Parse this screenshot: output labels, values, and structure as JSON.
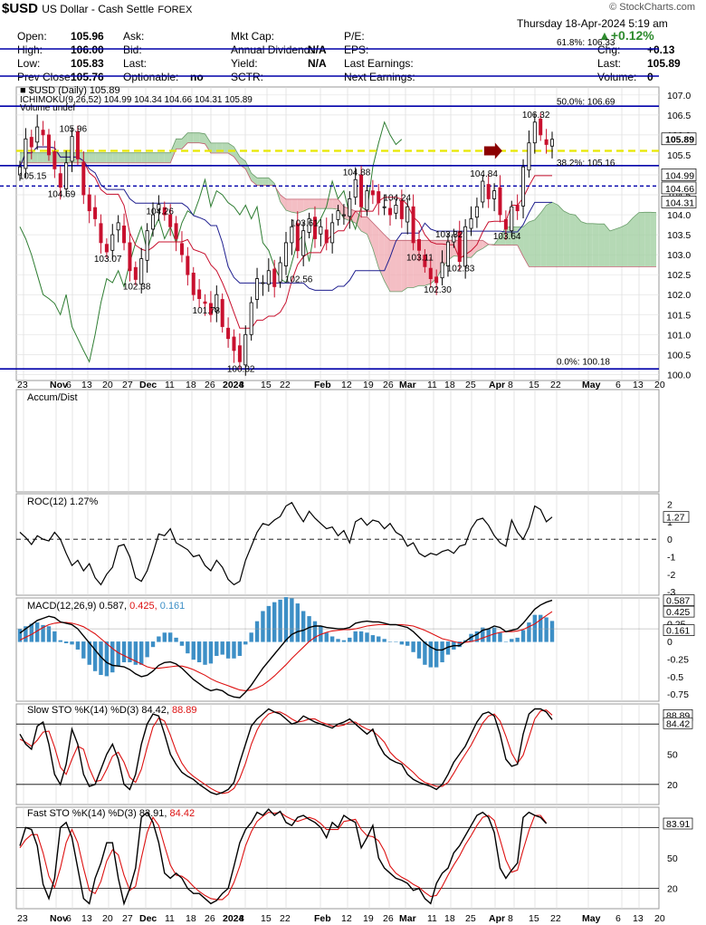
{
  "header": {
    "symbol": "$USD",
    "name": "US Dollar - Cash Settle",
    "exchange": "FOREX",
    "watermark": "© StockCharts.com",
    "date": "Thursday  18-Apr-2024  5:19 am",
    "change_pct": "▲+0.12%",
    "row1": [
      "Open:",
      "105.96",
      "Ask:",
      "",
      "Mkt Cap:",
      "",
      "P/E:",
      ""
    ],
    "row2": [
      "High:",
      "106.00",
      "Bid:",
      "",
      "Annual Dividend:",
      "N/A",
      "EPS:",
      "",
      "Chg:",
      "+0.13"
    ],
    "row3": [
      "Low:",
      "105.83",
      "Last:",
      "",
      "Yield:",
      "N/A",
      "Last Earnings:",
      "",
      "Last:",
      "105.89"
    ],
    "row4": [
      "Prev Close:",
      "105.76",
      "Optionable:",
      "no",
      "SCTR:",
      "",
      "Next Earnings:",
      "",
      "Volume:",
      "0"
    ]
  },
  "legend": {
    "price": "$USD (Daily) 105.89",
    "ichimoku_label": "ICHIMOKU(9,26,52)",
    "ichimoku_vals": [
      "104.99",
      "104.34",
      "104.66",
      "104.31",
      "105.89"
    ],
    "volume": "Volume undef"
  },
  "colors": {
    "bull": "#000000",
    "bear": "#c8102e",
    "hline": "#0000aa",
    "yellow": "#e8e800",
    "cloud_green": "#9ccc9c",
    "cloud_red": "#f0a8b0",
    "tenkan": "#c8102e",
    "kijun": "#1f1f8f",
    "chikou": "#2e7d32",
    "macd_hist": "#3d8fc6",
    "signal": "#d11",
    "grid": "#888888"
  },
  "chart_data": [
    {
      "type": "candlestick",
      "title": "$USD (Daily) 105.89",
      "ylim": [
        99.85,
        107.2
      ],
      "y_ticks": [
        "107.0",
        "106.5",
        "106.0",
        "105.5",
        "105.0",
        "104.5",
        "104.0",
        "103.5",
        "103.0",
        "102.5",
        "102.0",
        "101.5",
        "101.0",
        "100.5",
        "100.0"
      ],
      "x_labels": [
        "23",
        "Nov",
        "6",
        "13",
        "20",
        "27",
        "Dec",
        "11",
        "18",
        "26",
        "2024",
        "8",
        "15",
        "22",
        "Feb",
        "12",
        "19",
        "26",
        "Mar",
        "11",
        "18",
        "25",
        "Apr",
        "8",
        "15",
        "22",
        "May",
        "6",
        "13",
        "20"
      ],
      "close": [
        105.2,
        105.9,
        105.7,
        106.2,
        106.0,
        105.5,
        105.15,
        104.69,
        105.3,
        105.96,
        105.4,
        104.5,
        104.1,
        103.9,
        103.3,
        103.07,
        103.5,
        103.8,
        103.3,
        102.6,
        102.38,
        102.9,
        103.6,
        104.0,
        104.26,
        104.0,
        103.7,
        103.4,
        103.0,
        102.5,
        102.0,
        101.9,
        101.78,
        101.5,
        102.0,
        101.2,
        100.9,
        100.6,
        100.32,
        101.0,
        101.8,
        102.4,
        102.3,
        102.6,
        102.2,
        102.8,
        103.3,
        103.7,
        103.1,
        103.6,
        103.9,
        103.4,
        103.7,
        103.3,
        103.8,
        104.1,
        104.0,
        104.4,
        104.88,
        104.2,
        104.6,
        104.5,
        104.3,
        104.2,
        104.0,
        104.24,
        103.9,
        104.2,
        103.3,
        103.11,
        102.7,
        102.4,
        102.3,
        102.8,
        103.32,
        103.5,
        102.83,
        103.7,
        103.9,
        104.2,
        104.84,
        104.4,
        104.6,
        104.0,
        103.64,
        104.2,
        104.1,
        105.2,
        105.8,
        106.32,
        106.0,
        105.76,
        105.89
      ],
      "annotations": [
        {
          "label": "105.96",
          "i": 9,
          "v": 105.96,
          "pos": "above"
        },
        {
          "label": "105.15",
          "i": 2,
          "v": 105.15,
          "pos": "below"
        },
        {
          "label": "104.69",
          "i": 7,
          "v": 104.69,
          "pos": "below"
        },
        {
          "label": "104.26",
          "i": 24,
          "v": 104.26,
          "pos": "below"
        },
        {
          "label": "103.07",
          "i": 15,
          "v": 103.07,
          "pos": "below"
        },
        {
          "label": "102.38",
          "i": 20,
          "v": 102.38,
          "pos": "below"
        },
        {
          "label": "101.78",
          "i": 32,
          "v": 101.78,
          "pos": "below"
        },
        {
          "label": "100.32",
          "i": 38,
          "v": 100.32,
          "pos": "below"
        },
        {
          "label": "103.61",
          "i": 49,
          "v": 103.61,
          "pos": "above"
        },
        {
          "label": "102.56",
          "i": 48,
          "v": 102.56,
          "pos": "below"
        },
        {
          "label": "104.88",
          "i": 58,
          "v": 104.88,
          "pos": "above"
        },
        {
          "label": "104.24",
          "i": 65,
          "v": 104.24,
          "pos": "above"
        },
        {
          "label": "103.11",
          "i": 69,
          "v": 103.11,
          "pos": "below"
        },
        {
          "label": "103.32",
          "i": 74,
          "v": 103.32,
          "pos": "above"
        },
        {
          "label": "102.30",
          "i": 72,
          "v": 102.3,
          "pos": "below"
        },
        {
          "label": "102.83",
          "i": 76,
          "v": 102.83,
          "pos": "below"
        },
        {
          "label": "104.84",
          "i": 80,
          "v": 104.84,
          "pos": "above"
        },
        {
          "label": "103.64",
          "i": 84,
          "v": 103.64,
          "pos": "below"
        },
        {
          "label": "106.32",
          "i": 89,
          "v": 106.32,
          "pos": "above"
        }
      ],
      "fib_levels": [
        {
          "label": "61.8%: 106.33",
          "v": 106.33
        },
        {
          "label": "50.0%: 106.69",
          "v": 106.69
        },
        {
          "label": "38.2%: 105.16",
          "v": 105.16
        },
        {
          "label": "0.0%: 100.18",
          "v": 100.18
        }
      ],
      "blue_lines": [
        106.72,
        105.23,
        100.14
      ],
      "dashed_line": 104.72,
      "yellow_line": 105.6,
      "right_tags": [
        "105.89",
        "104.99",
        "104.66",
        "104.31"
      ]
    },
    {
      "type": "line",
      "title": "Accum/Dist",
      "values": []
    },
    {
      "type": "line",
      "title": "ROC(12) 1.27%",
      "ylim": [
        -3.2,
        2.6
      ],
      "y_ticks": [
        "2",
        "1",
        "0",
        "-1",
        "-2",
        "-3"
      ],
      "zero_line": 0,
      "right_tag": "1.27",
      "values": [
        0.4,
        0.1,
        -0.3,
        0.2,
        0.0,
        -0.1,
        0.4,
        0.0,
        -0.8,
        -1.5,
        -1.2,
        -1.8,
        -1.4,
        -2.2,
        -2.6,
        -2.0,
        -1.6,
        -0.4,
        -0.3,
        -1.0,
        -2.2,
        -2.4,
        -1.8,
        -0.8,
        0.3,
        0.2,
        0.6,
        -0.2,
        -0.4,
        -0.6,
        -1.0,
        -0.9,
        -1.5,
        -1.8,
        -1.2,
        -1.6,
        -2.3,
        -2.6,
        -2.4,
        -1.2,
        -0.4,
        0.4,
        0.9,
        0.8,
        1.1,
        1.3,
        1.9,
        2.1,
        1.5,
        1.0,
        1.6,
        1.2,
        0.9,
        0.6,
        0.7,
        0.2,
        0.5,
        -0.2,
        1.0,
        1.2,
        0.8,
        1.1,
        1.0,
        0.6,
        0.9,
        0.4,
        0.2,
        -0.4,
        -0.2,
        -0.8,
        -1.0,
        -0.8,
        -0.9,
        -0.7,
        -0.6,
        -0.8,
        -0.4,
        -0.3,
        0.6,
        1.1,
        1.2,
        0.8,
        0.2,
        -0.2,
        -0.4,
        1.1,
        0.4,
        0.0,
        0.7,
        1.9,
        1.7,
        1.0,
        1.27
      ]
    },
    {
      "type": "line",
      "title": "MACD(12,26,9)",
      "macd_val": "0.587",
      "signal_val": "0.425",
      "hist_val": "0.161",
      "ylim": [
        -0.85,
        0.62
      ],
      "y_ticks": [
        "0.587",
        "0.425",
        "0.25",
        "0.161",
        "0",
        "-0.25",
        "-0.5",
        "-0.75"
      ],
      "right_tags": [
        "0.587",
        "0.425",
        "0.161"
      ],
      "macd": [
        0.12,
        0.18,
        0.24,
        0.3,
        0.33,
        0.36,
        0.34,
        0.28,
        0.26,
        0.24,
        0.18,
        0.08,
        -0.02,
        -0.12,
        -0.22,
        -0.3,
        -0.34,
        -0.35,
        -0.36,
        -0.4,
        -0.46,
        -0.5,
        -0.48,
        -0.42,
        -0.34,
        -0.3,
        -0.29,
        -0.32,
        -0.38,
        -0.46,
        -0.54,
        -0.6,
        -0.66,
        -0.7,
        -0.68,
        -0.7,
        -0.76,
        -0.79,
        -0.8,
        -0.72,
        -0.62,
        -0.5,
        -0.38,
        -0.28,
        -0.18,
        -0.08,
        0.02,
        0.1,
        0.14,
        0.16,
        0.2,
        0.22,
        0.22,
        0.2,
        0.19,
        0.18,
        0.18,
        0.2,
        0.26,
        0.28,
        0.29,
        0.28,
        0.28,
        0.26,
        0.24,
        0.24,
        0.22,
        0.2,
        0.14,
        0.06,
        -0.02,
        -0.08,
        -0.12,
        -0.12,
        -0.08,
        -0.06,
        -0.06,
        0.0,
        0.06,
        0.1,
        0.16,
        0.18,
        0.22,
        0.2,
        0.14,
        0.16,
        0.18,
        0.26,
        0.36,
        0.46,
        0.52,
        0.56,
        0.587
      ],
      "signal": [
        0.02,
        0.06,
        0.1,
        0.15,
        0.2,
        0.24,
        0.26,
        0.27,
        0.27,
        0.26,
        0.24,
        0.21,
        0.16,
        0.11,
        0.04,
        -0.03,
        -0.1,
        -0.16,
        -0.2,
        -0.24,
        -0.28,
        -0.32,
        -0.36,
        -0.38,
        -0.38,
        -0.37,
        -0.36,
        -0.35,
        -0.35,
        -0.37,
        -0.4,
        -0.44,
        -0.48,
        -0.53,
        -0.57,
        -0.6,
        -0.63,
        -0.66,
        -0.69,
        -0.7,
        -0.69,
        -0.66,
        -0.62,
        -0.56,
        -0.49,
        -0.41,
        -0.33,
        -0.24,
        -0.16,
        -0.08,
        0.0,
        0.06,
        0.1,
        0.13,
        0.15,
        0.16,
        0.17,
        0.17,
        0.18,
        0.2,
        0.22,
        0.23,
        0.24,
        0.24,
        0.24,
        0.24,
        0.24,
        0.23,
        0.22,
        0.19,
        0.16,
        0.12,
        0.08,
        0.04,
        0.02,
        0.0,
        -0.02,
        -0.01,
        0.0,
        0.02,
        0.05,
        0.08,
        0.11,
        0.13,
        0.14,
        0.14,
        0.15,
        0.17,
        0.21,
        0.25,
        0.31,
        0.37,
        0.425
      ]
    },
    {
      "type": "line",
      "title": "Slow STO %K(14) %D(3)",
      "k_val": "84.42",
      "d_val": "88.89",
      "ylim": [
        0,
        100
      ],
      "y_ticks": [
        "80",
        "50",
        "20"
      ],
      "right_tags": [
        "88.89",
        "84.42"
      ],
      "k": [
        70,
        60,
        55,
        78,
        82,
        60,
        30,
        20,
        40,
        75,
        60,
        30,
        18,
        20,
        35,
        50,
        60,
        45,
        20,
        15,
        30,
        60,
        80,
        90,
        88,
        70,
        50,
        40,
        32,
        28,
        25,
        20,
        16,
        12,
        10,
        12,
        15,
        22,
        42,
        60,
        78,
        85,
        90,
        95,
        92,
        90,
        85,
        80,
        82,
        88,
        85,
        82,
        80,
        78,
        76,
        80,
        82,
        85,
        80,
        75,
        70,
        75,
        60,
        50,
        45,
        42,
        40,
        30,
        25,
        22,
        20,
        18,
        15,
        20,
        30,
        42,
        50,
        58,
        70,
        82,
        90,
        92,
        88,
        70,
        45,
        38,
        40,
        70,
        90,
        95,
        95,
        92,
        84.42
      ],
      "d": [
        65,
        62,
        58,
        64,
        72,
        73,
        57,
        37,
        30,
        45,
        58,
        55,
        36,
        23,
        24,
        35,
        48,
        52,
        42,
        27,
        22,
        35,
        57,
        77,
        86,
        83,
        69,
        53,
        41,
        33,
        28,
        24,
        20,
        16,
        13,
        11,
        12,
        16,
        26,
        41,
        60,
        74,
        84,
        90,
        92,
        92,
        89,
        85,
        82,
        83,
        85,
        85,
        82,
        80,
        78,
        78,
        79,
        82,
        82,
        78,
        75,
        73,
        68,
        62,
        52,
        46,
        42,
        37,
        32,
        26,
        22,
        20,
        18,
        18,
        22,
        31,
        41,
        50,
        59,
        70,
        81,
        88,
        90,
        83,
        68,
        51,
        41,
        49,
        67,
        85,
        93,
        94,
        88.89
      ]
    },
    {
      "type": "line",
      "title": "Fast STO %K(14) %D(3)",
      "k_val": "83.91",
      "d_val": "84.42",
      "ylim": [
        0,
        100
      ],
      "y_ticks": [
        "80",
        "50",
        "20"
      ],
      "right_tag": "83.91",
      "k": [
        62,
        80,
        78,
        62,
        24,
        10,
        30,
        80,
        85,
        70,
        40,
        10,
        5,
        30,
        45,
        65,
        65,
        30,
        5,
        20,
        40,
        90,
        95,
        85,
        65,
        35,
        30,
        35,
        30,
        20,
        15,
        15,
        10,
        5,
        8,
        15,
        20,
        42,
        65,
        78,
        85,
        95,
        92,
        98,
        92,
        96,
        85,
        82,
        90,
        92,
        88,
        85,
        80,
        70,
        85,
        80,
        92,
        88,
        85,
        60,
        70,
        82,
        50,
        40,
        35,
        30,
        28,
        25,
        18,
        20,
        10,
        5,
        25,
        35,
        40,
        55,
        62,
        72,
        82,
        92,
        95,
        90,
        75,
        40,
        30,
        38,
        45,
        90,
        95,
        92,
        90,
        83.91
      ],
      "d": [
        60,
        68,
        73,
        73,
        55,
        32,
        21,
        40,
        65,
        78,
        65,
        40,
        18,
        15,
        27,
        47,
        58,
        53,
        33,
        18,
        22,
        50,
        75,
        90,
        82,
        62,
        43,
        33,
        32,
        28,
        22,
        17,
        13,
        10,
        9,
        9,
        14,
        26,
        42,
        62,
        76,
        86,
        91,
        95,
        94,
        95,
        91,
        88,
        86,
        88,
        90,
        88,
        84,
        78,
        78,
        78,
        86,
        87,
        88,
        78,
        72,
        71,
        67,
        57,
        42,
        35,
        31,
        28,
        24,
        21,
        16,
        12,
        13,
        22,
        33,
        43,
        52,
        63,
        72,
        82,
        90,
        92,
        87,
        68,
        48,
        36,
        38,
        58,
        77,
        92,
        92,
        84.42
      ]
    }
  ]
}
